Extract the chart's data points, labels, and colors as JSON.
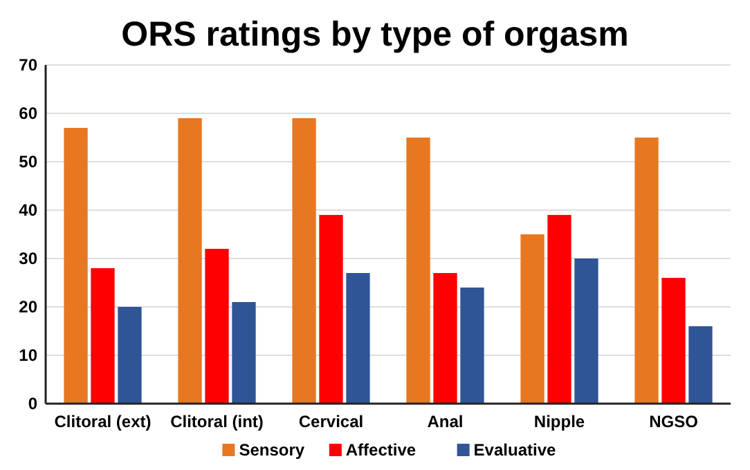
{
  "chart_data": {
    "type": "bar",
    "title": "ORS ratings by type of orgasm",
    "categories": [
      "Clitoral (ext)",
      "Clitoral (int)",
      "Cervical",
      "Anal",
      "Nipple",
      "NGSO"
    ],
    "series": [
      {
        "name": "Sensory",
        "color": "#e87722",
        "values": [
          57,
          59,
          59,
          55,
          35,
          55
        ]
      },
      {
        "name": "Affective",
        "color": "#ff0000",
        "values": [
          28,
          32,
          39,
          27,
          39,
          26
        ]
      },
      {
        "name": "Evaluative",
        "color": "#2f5597",
        "values": [
          20,
          21,
          27,
          24,
          30,
          16
        ]
      }
    ],
    "ylim": [
      0,
      70
    ],
    "yticks": [
      0,
      10,
      20,
      30,
      40,
      50,
      60,
      70
    ],
    "grid": "y",
    "legend": "bottom"
  }
}
